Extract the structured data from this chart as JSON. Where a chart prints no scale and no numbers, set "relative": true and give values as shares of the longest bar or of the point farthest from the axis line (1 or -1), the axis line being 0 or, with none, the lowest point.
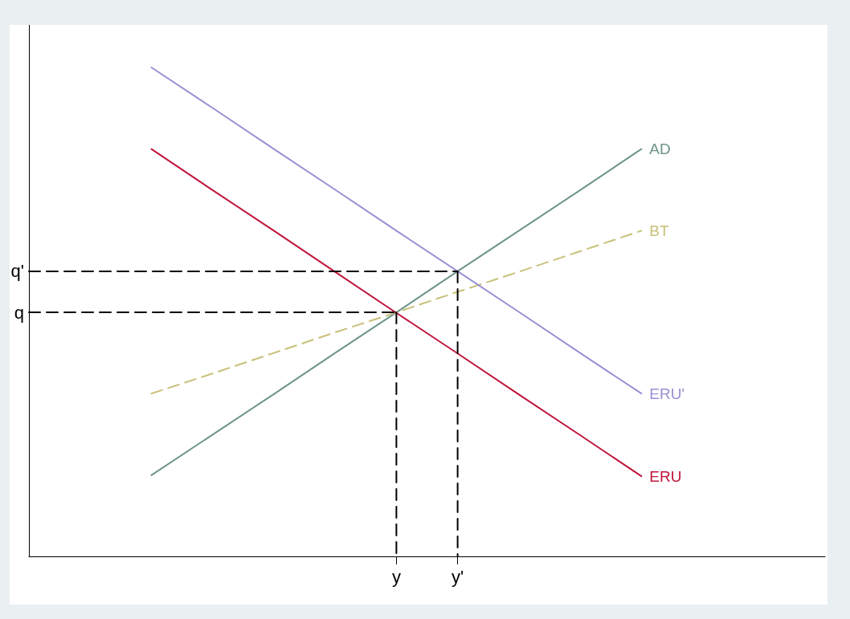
{
  "chart_data": {
    "type": "line",
    "relative": true,
    "categories": [
      null,
      null,
      null,
      null,
      null,
      null,
      "y",
      "y'",
      null,
      null,
      null,
      null,
      null,
      null
    ],
    "grid": false,
    "legend": false,
    "marker": "none",
    "series": [
      {
        "name": "AD",
        "color": "#6e958a",
        "values": [
          null,
          null,
          0.166,
          0.249,
          0.332,
          0.416,
          0.499,
          0.583,
          0.666,
          0.749,
          0.833,
          null,
          null,
          null
        ]
      },
      {
        "name": "BT",
        "color": "#c8c078",
        "line_style": "dashed",
        "values": [
          null,
          null,
          0.333,
          0.374,
          0.416,
          0.458,
          0.499,
          0.541,
          0.582,
          0.624,
          0.666,
          null,
          null,
          null
        ]
      },
      {
        "name": "ERU'",
        "color": "#9a8fd4",
        "values": [
          null,
          null,
          1,
          0.917,
          0.833,
          0.75,
          0.666,
          0.583,
          0.5,
          0.416,
          0.333,
          null,
          null,
          null
        ]
      },
      {
        "name": "ERU",
        "color": "#c0143c",
        "values": [
          null,
          null,
          0.833,
          0.749,
          0.666,
          0.582,
          0.498,
          0.415,
          0.331,
          0.248,
          0.164,
          null,
          null,
          null
        ]
      },
      {
        "name": "q",
        "color": "#000000",
        "line_style": "dashed",
        "values": [
          0.499,
          0.499,
          0.499,
          0.499,
          0.499,
          0.499,
          0.499,
          null,
          null,
          null,
          null,
          null,
          null,
          null
        ]
      },
      {
        "name": "q'",
        "color": "#000000",
        "line_style": "dashed",
        "values": [
          0.583,
          0.583,
          0.583,
          0.583,
          0.583,
          0.583,
          0.583,
          0.583,
          null,
          null,
          null,
          null,
          null,
          null
        ]
      },
      {
        "color": "#000000",
        "line_style": "dashed",
        "x": [
          "y",
          "y"
        ],
        "values": [
          0.499,
          0
        ]
      },
      {
        "color": "#000000",
        "line_style": "dashed",
        "x": [
          "y'",
          "y'"
        ],
        "values": [
          0.583,
          0
        ]
      }
    ]
  }
}
